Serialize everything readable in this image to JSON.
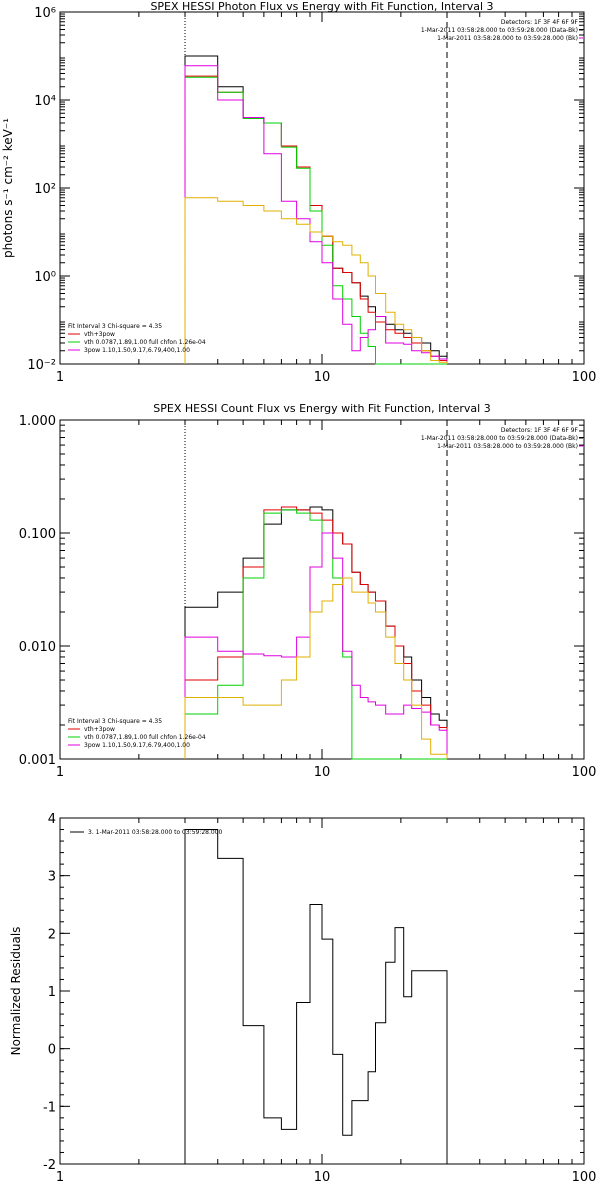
{
  "chart_data": [
    {
      "type": "line",
      "title": "SPEX HESSI Photon Flux vs Energy with Fit Function, Interval 3",
      "ylabel": "photons s⁻¹ cm⁻² keV⁻¹",
      "xlabel": "",
      "xscale": "log",
      "yscale": "log",
      "xlim": [
        1,
        100
      ],
      "ylim": [
        0.01,
        1000000
      ],
      "xticks": [
        1,
        10,
        100
      ],
      "xtick_labels": [
        "1",
        "10",
        "100"
      ],
      "yticks": [
        0.01,
        1,
        100,
        10000,
        1000000
      ],
      "ytick_labels": [
        "10⁻²",
        "10⁰",
        "10²",
        "10⁴",
        "10⁶"
      ],
      "grid": false,
      "header_lines": [
        "Detectors: 1F 3F 4F 6F 9F",
        "1-Mar-2011 03:58:28.000 to 03:59:28.000 (Data-Bk)",
        "1-Mar-2011 03:58:28.000 to 03:59:28.000 (Bk)"
      ],
      "fit_text": "Fit Interval 3   Chi-square = 4.35",
      "legend_position": "bottom-left",
      "vlines": [
        {
          "x": 3,
          "style": "dotted",
          "color": "#000000"
        },
        {
          "x": 30,
          "style": "dashed",
          "color": "#000000"
        }
      ],
      "edges": [
        3,
        4,
        5,
        6,
        7,
        8,
        9,
        10,
        11,
        12,
        13,
        14,
        15,
        16,
        17.5,
        19,
        20.5,
        22,
        24,
        26,
        28,
        30
      ],
      "series": [
        {
          "name": "",
          "color": "#000000",
          "values": [
            100000,
            20000,
            4000,
            3000,
            900,
            300,
            40,
            8,
            1.5,
            1.2,
            0.7,
            0.35,
            0.2,
            0.12,
            0.08,
            0.06,
            0.05,
            0.04,
            0.03,
            0.02,
            0.015
          ]
        },
        {
          "name": "vth+3pow",
          "color": "#e00000",
          "values": [
            35000,
            15000,
            4000,
            3000,
            900,
            300,
            40,
            8,
            1.5,
            1.2,
            0.7,
            0.3,
            0.15,
            0.09,
            0.06,
            0.05,
            0.04,
            0.03,
            0.02,
            0.015,
            0.012
          ]
        },
        {
          "name": "vth 0.0787,1.89,1.00  full chfon 1.26e-04",
          "color": "#00d000",
          "values": [
            33000,
            15000,
            3800,
            3000,
            850,
            280,
            30,
            5,
            0.6,
            0.3,
            0.12,
            0.05,
            0.025,
            0.01,
            0.01,
            0.01,
            0.01,
            0.01,
            0.01,
            0.01,
            0.01
          ]
        },
        {
          "name": "3pow 1.10,1.50,9.17,6.79,400,1.00",
          "color": "#e000e0",
          "values": [
            60000,
            10000,
            4000,
            600,
            50,
            20,
            6,
            2,
            0.3,
            0.08,
            0.02,
            0.04,
            0.06,
            0.12,
            0.03,
            0.03,
            0.028,
            0.02,
            0.018,
            0.015,
            0.013
          ]
        },
        {
          "name": "",
          "color": "#e0b000",
          "values": [
            60,
            50,
            40,
            30,
            20,
            15,
            10,
            8,
            6,
            5,
            3,
            2,
            1,
            0.4,
            0.15,
            0.08,
            0.06,
            0.04,
            0.02,
            0.012,
            0.011
          ]
        }
      ]
    },
    {
      "type": "line",
      "title": "SPEX HESSI Count Flux vs Energy with Fit Function, Interval 3",
      "ylabel": "",
      "xlabel": "",
      "xscale": "log",
      "yscale": "log",
      "xlim": [
        1,
        100
      ],
      "ylim": [
        0.001,
        1
      ],
      "xticks": [
        1,
        10,
        100
      ],
      "xtick_labels": [
        "1",
        "10",
        "100"
      ],
      "yticks": [
        0.001,
        0.01,
        0.1,
        1
      ],
      "ytick_labels": [
        "0.001",
        "0.010",
        "0.100",
        "1.000"
      ],
      "grid": false,
      "header_lines": [
        "Detectors: 1F 3F 4F 6F 9F",
        "1-Mar-2011 03:58:28.000 to 03:59:28.000 (Data-Bk)",
        "1-Mar-2011 03:58:28.000 to 03:59:28.000 (Bk)"
      ],
      "fit_text": "Fit Interval 3   Chi-square = 4.35",
      "legend_position": "bottom-left",
      "vlines": [
        {
          "x": 3,
          "style": "dotted",
          "color": "#000000"
        },
        {
          "x": 30,
          "style": "dashed",
          "color": "#000000"
        }
      ],
      "edges": [
        3,
        4,
        5,
        6,
        7,
        8,
        9,
        10,
        11,
        12,
        13,
        14,
        15,
        16,
        17.5,
        19,
        20.5,
        22,
        24,
        26,
        28,
        30
      ],
      "series": [
        {
          "name": "",
          "color": "#000000",
          "values": [
            0.022,
            0.03,
            0.06,
            0.12,
            0.16,
            0.16,
            0.17,
            0.16,
            0.1,
            0.08,
            0.045,
            0.035,
            0.03,
            0.025,
            0.015,
            0.01,
            0.008,
            0.005,
            0.0035,
            0.0025,
            0.0022
          ]
        },
        {
          "name": "vth+3pow",
          "color": "#e00000",
          "values": [
            0.005,
            0.008,
            0.05,
            0.16,
            0.17,
            0.16,
            0.15,
            0.13,
            0.1,
            0.08,
            0.045,
            0.035,
            0.03,
            0.025,
            0.015,
            0.01,
            0.007,
            0.004,
            0.003,
            0.002,
            0.0019
          ]
        },
        {
          "name": "vth 0.0787,1.89,1.00  full chfon 1.26e-04",
          "color": "#00d000",
          "values": [
            0.0025,
            0.0045,
            0.04,
            0.15,
            0.16,
            0.15,
            0.13,
            0.1,
            0.04,
            0.008,
            0.001,
            0.001,
            0.001,
            0.001,
            0.001,
            0.001,
            0.001,
            0.001,
            0.001,
            0.001,
            0.001
          ]
        },
        {
          "name": "3pow 1.10,1.50,9.17,6.79,400,1.00",
          "color": "#e000e0",
          "values": [
            0.012,
            0.009,
            0.0085,
            0.0082,
            0.008,
            0.012,
            0.05,
            0.1,
            0.06,
            0.009,
            0.0045,
            0.0035,
            0.0032,
            0.003,
            0.0025,
            0.0025,
            0.003,
            0.0028,
            0.0026,
            0.002,
            0.0018
          ]
        },
        {
          "name": "",
          "color": "#e0b000",
          "values": [
            0.0035,
            0.0035,
            0.003,
            0.003,
            0.005,
            0.008,
            0.02,
            0.025,
            0.035,
            0.04,
            0.03,
            0.03,
            0.024,
            0.02,
            0.012,
            0.007,
            0.005,
            0.003,
            0.0015,
            0.0011,
            0.0011
          ]
        }
      ]
    },
    {
      "type": "line",
      "title": "",
      "ylabel": "Normalized Residuals",
      "xlabel": "",
      "xscale": "log",
      "yscale": "linear",
      "xlim": [
        1,
        100
      ],
      "ylim": [
        -2,
        4
      ],
      "xticks": [
        1,
        10,
        100
      ],
      "xtick_labels": [
        "1",
        "10",
        "100"
      ],
      "yticks": [
        -2,
        -1,
        0,
        1,
        2,
        3,
        4
      ],
      "ytick_labels": [
        "-2",
        "-1",
        "0",
        "1",
        "2",
        "3",
        "4"
      ],
      "grid": false,
      "legend_position": "top-left",
      "edges": [
        3,
        4,
        5,
        6,
        7,
        8,
        9,
        10,
        11,
        12,
        13,
        14,
        15,
        16,
        17.5,
        19,
        20.5,
        22,
        24,
        26,
        28,
        30
      ],
      "series": [
        {
          "name": "3.  1-Mar-2011 03:58:28.000 to 03:59:28.000",
          "color": "#000000",
          "values": [
            3.8,
            3.3,
            0.4,
            -1.2,
            -1.4,
            0.8,
            2.5,
            1.9,
            -0.1,
            -1.5,
            -0.9,
            -0.9,
            -0.4,
            0.45,
            1.5,
            2.1,
            0.9,
            1.35,
            1.35,
            1.35,
            1.35
          ]
        }
      ]
    }
  ]
}
